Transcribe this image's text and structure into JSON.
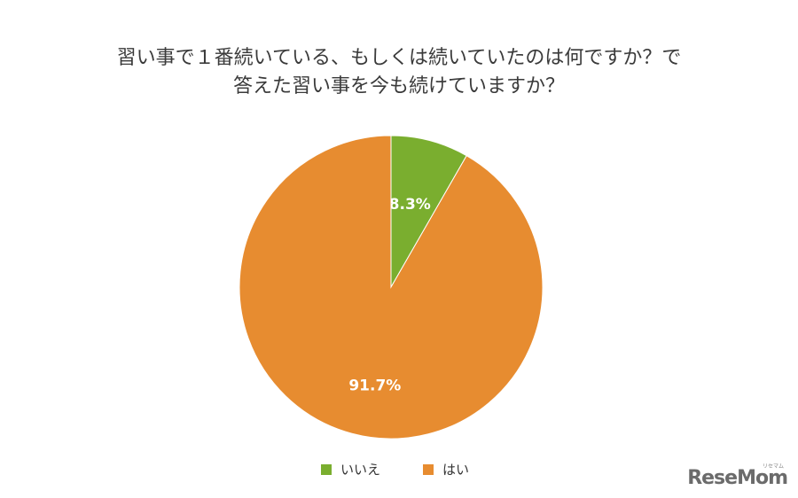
{
  "chart_data": {
    "type": "pie",
    "title_lines": [
      "習い事で１番続いている、もしくは続いていたのは何ですか？で",
      "答えた習い事を今も続けていますか？"
    ],
    "slices": [
      {
        "name": "いいえ",
        "value": 8.3,
        "label": "8.3%",
        "color": "#7aae2f"
      },
      {
        "name": "はい",
        "value": 91.7,
        "label": "91.7%",
        "color": "#e78c30"
      }
    ],
    "start": "12 o'clock",
    "direction": "clockwise",
    "legend_position": "bottom"
  },
  "branding": {
    "logo_text": "ReseMom",
    "logo_sub": "リセマム"
  }
}
